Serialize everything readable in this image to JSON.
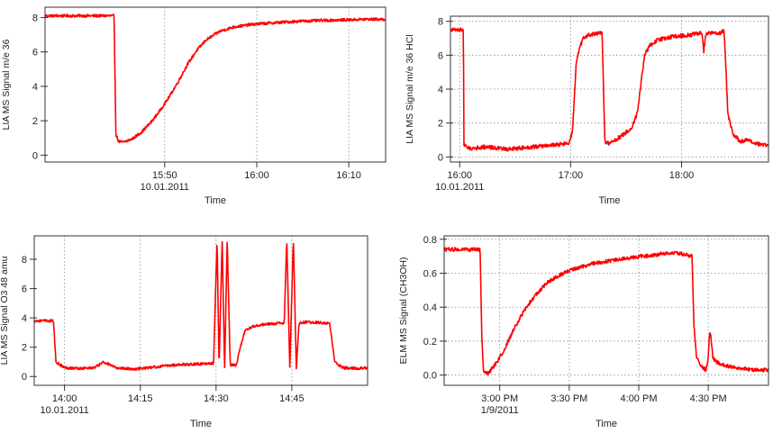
{
  "figure": {
    "trace_color": "#ff0000",
    "axis_color": "#333333",
    "grid_color": "#8a8a8a"
  },
  "chart_data": [
    {
      "type": "line",
      "ylabel": "LIA MS Signal m/e 36",
      "xlabel": "Time",
      "x_unit": "minutes",
      "xlim": [
        0,
        74
      ],
      "ylim": [
        -0.4,
        8.6
      ],
      "grid": "vertical",
      "yticks": [
        0,
        2,
        4,
        6,
        8
      ],
      "xticks": [
        {
          "x": 26,
          "label": "15:50",
          "sublabel": "10.01.2011"
        },
        {
          "x": 46,
          "label": "16:00",
          "sublabel": ""
        },
        {
          "x": 66,
          "label": "16:10",
          "sublabel": ""
        }
      ],
      "series": [
        {
          "name": "m/e 36",
          "x": [
            0,
            15,
            15.4,
            16,
            17,
            19,
            21,
            23,
            25,
            27,
            29,
            31,
            33,
            35,
            38,
            41,
            45,
            50,
            55,
            60,
            65,
            70,
            74
          ],
          "y": [
            8.1,
            8.1,
            1.2,
            0.8,
            0.75,
            0.95,
            1.35,
            1.9,
            2.6,
            3.4,
            4.3,
            5.3,
            6.1,
            6.7,
            7.2,
            7.45,
            7.6,
            7.7,
            7.78,
            7.83,
            7.86,
            7.9,
            7.9
          ],
          "noise": 0.08
        }
      ]
    },
    {
      "type": "line",
      "ylabel": "LIA MS Signal m/e 36 HCl",
      "xlabel": "Time",
      "x_unit": "minutes",
      "xlim": [
        0,
        172
      ],
      "ylim": [
        -0.3,
        8.3
      ],
      "grid": "both",
      "yticks": [
        0,
        2,
        4,
        6,
        8
      ],
      "xticks": [
        {
          "x": 5,
          "label": "16:00",
          "sublabel": "10.01.2011"
        },
        {
          "x": 65,
          "label": "17:00",
          "sublabel": ""
        },
        {
          "x": 125,
          "label": "18:00",
          "sublabel": ""
        }
      ],
      "series": [
        {
          "name": "m/e 36 HCl",
          "x": [
            0,
            7,
            7.3,
            10,
            20,
            30,
            40,
            50,
            60,
            64,
            66,
            68,
            70,
            72,
            75,
            82,
            83.5,
            86,
            92,
            98,
            101,
            103,
            105,
            108,
            112,
            120,
            130,
            136,
            137,
            138,
            139,
            145,
            148,
            149,
            150,
            153,
            157,
            160,
            166,
            172
          ],
          "y": [
            7.5,
            7.5,
            0.7,
            0.5,
            0.6,
            0.45,
            0.55,
            0.65,
            0.75,
            0.8,
            1.5,
            5.5,
            6.5,
            7.0,
            7.2,
            7.3,
            0.9,
            0.8,
            1.2,
            1.7,
            2.6,
            4.3,
            6.0,
            6.6,
            6.9,
            7.1,
            7.2,
            7.35,
            6.2,
            7.2,
            7.3,
            7.3,
            7.4,
            5.2,
            2.5,
            1.3,
            0.9,
            1.0,
            0.75,
            0.7
          ],
          "noise": 0.12
        }
      ]
    },
    {
      "type": "line",
      "ylabel": "LIA MS Signal O3 48 amu",
      "xlabel": "Time",
      "x_unit": "minutes",
      "xlim": [
        0,
        66
      ],
      "ylim": [
        -0.6,
        9.6
      ],
      "grid": "vertical",
      "yticks": [
        0,
        2,
        4,
        6,
        8
      ],
      "xticks": [
        {
          "x": 6,
          "label": "14:00",
          "sublabel": "10.01.2011"
        },
        {
          "x": 21,
          "label": "14:15",
          "sublabel": ""
        },
        {
          "x": 36,
          "label": "14:30",
          "sublabel": ""
        },
        {
          "x": 51,
          "label": "14:45",
          "sublabel": ""
        }
      ],
      "series": [
        {
          "name": "O3 48 amu",
          "x": [
            0,
            3.8,
            4.3,
            6,
            9,
            12,
            13.8,
            16,
            20,
            24,
            28,
            32,
            35.5,
            36.2,
            36.6,
            37.2,
            37.7,
            38.2,
            38.8,
            39.4,
            40,
            40.8,
            41.8,
            44,
            47,
            49.5,
            50,
            50.6,
            51.3,
            51.9,
            52.4,
            53,
            56,
            58.5,
            59.5,
            61,
            64,
            66
          ],
          "y": [
            3.8,
            3.8,
            1.0,
            0.6,
            0.55,
            0.6,
            1.0,
            0.6,
            0.5,
            0.65,
            0.8,
            0.85,
            0.9,
            9.4,
            0.5,
            9.4,
            0.5,
            9.4,
            0.8,
            0.8,
            0.75,
            2.0,
            3.2,
            3.5,
            3.6,
            3.65,
            9.4,
            0.5,
            9.4,
            0.5,
            3.6,
            3.7,
            3.7,
            3.6,
            1.0,
            0.6,
            0.55,
            0.6
          ],
          "noise": 0.09
        }
      ]
    },
    {
      "type": "line",
      "ylabel": "ELM MS Signal (CH3OH)",
      "xlabel": "Time",
      "x_unit": "minutes",
      "xlim": [
        0,
        140
      ],
      "ylim": [
        -0.06,
        0.82
      ],
      "grid": "both",
      "yticks": [
        0.0,
        0.2,
        0.4,
        0.6,
        0.8
      ],
      "ytick_labels": [
        "0.0",
        "0.2",
        "0.4",
        "0.6",
        "0.8"
      ],
      "xticks": [
        {
          "x": 24,
          "label": "3:00 PM",
          "sublabel": "1/9/2011"
        },
        {
          "x": 54,
          "label": "3:30 PM",
          "sublabel": ""
        },
        {
          "x": 84,
          "label": "4:00 PM",
          "sublabel": ""
        },
        {
          "x": 114,
          "label": "4:30 PM",
          "sublabel": ""
        }
      ],
      "series": [
        {
          "name": "CH3OH",
          "x": [
            0,
            15.5,
            16.3,
            17,
            19,
            22,
            26,
            30,
            35,
            40,
            45,
            50,
            55,
            60,
            65,
            70,
            75,
            80,
            85,
            88,
            92,
            96,
            100,
            104,
            107,
            107.8,
            109,
            111,
            112,
            113,
            114,
            114.6,
            115.2,
            116,
            117.5,
            120,
            124,
            128,
            132,
            135.5
          ],
          "y": [
            0.74,
            0.74,
            0.2,
            0.02,
            0.01,
            0.06,
            0.15,
            0.27,
            0.39,
            0.48,
            0.55,
            0.59,
            0.62,
            0.64,
            0.66,
            0.67,
            0.68,
            0.69,
            0.7,
            0.7,
            0.71,
            0.72,
            0.72,
            0.71,
            0.7,
            0.3,
            0.1,
            0.05,
            0.04,
            0.03,
            0.1,
            0.26,
            0.22,
            0.1,
            0.08,
            0.06,
            0.05,
            0.04,
            0.035,
            0.03
          ],
          "noise": 0.011
        }
      ]
    }
  ]
}
